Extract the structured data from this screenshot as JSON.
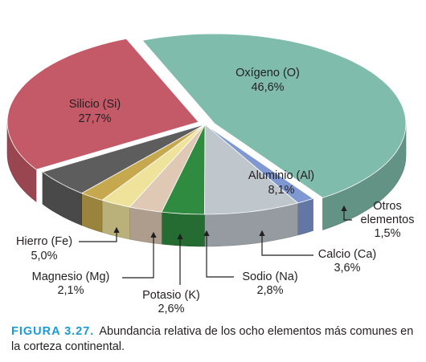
{
  "chart_data": {
    "type": "pie",
    "variant": "3d-exploded",
    "slices": [
      {
        "id": "oxigeno",
        "name": "Oxígeno (O)",
        "value": 46.6,
        "value_label": "46,6%",
        "color": "#7fbcab",
        "exploded": true
      },
      {
        "id": "otros",
        "name": "Otros elementos",
        "value": 1.5,
        "value_label": "1,5%",
        "color": "#7f98d2"
      },
      {
        "id": "aluminio",
        "name": "Aluminio (Al)",
        "value": 8.1,
        "value_label": "8,1%",
        "color": "#bfc7cd"
      },
      {
        "id": "calcio",
        "name": "Calcio (Ca)",
        "value": 3.6,
        "value_label": "3,6%",
        "color": "#2e8b3f"
      },
      {
        "id": "sodio",
        "name": "Sodio (Na)",
        "value": 2.8,
        "value_label": "2,8%",
        "color": "#dfc9b4"
      },
      {
        "id": "potasio",
        "name": "Potasio (K)",
        "value": 2.6,
        "value_label": "2,6%",
        "color": "#efe39c"
      },
      {
        "id": "magnesio",
        "name": "Magnesio (Mg)",
        "value": 2.1,
        "value_label": "2,1%",
        "color": "#c6a84e"
      },
      {
        "id": "hierro",
        "name": "Hierro (Fe)",
        "value": 5.0,
        "value_label": "5,0%",
        "color": "#5d5d5d"
      },
      {
        "id": "silicio",
        "name": "Silicio (Si)",
        "value": 27.7,
        "value_label": "27,7%",
        "color": "#c45a68",
        "exploded": true
      }
    ]
  },
  "labels": {
    "oxigeno": {
      "name": "Oxígeno (O)",
      "value": "46,6%"
    },
    "silicio": {
      "name": "Silicio (Si)",
      "value": "27,7%"
    },
    "aluminio": {
      "name": "Aluminio (Al)",
      "value": "8,1%"
    },
    "otros": {
      "line1": "Otros",
      "line2": "elementos",
      "value": "1,5%"
    },
    "calcio": {
      "name": "Calcio (Ca)",
      "value": "3,6%"
    },
    "sodio": {
      "name": "Sodio (Na)",
      "value": "2,8%"
    },
    "potasio": {
      "name": "Potasio (K)",
      "value": "2,6%"
    },
    "magnesio": {
      "name": "Magnesio (Mg)",
      "value": "2,1%"
    },
    "hierro": {
      "name": "Hierro (Fe)",
      "value": "5,0%"
    }
  },
  "caption": {
    "label": "FIGURA 3.27.",
    "text": "Abundancia relativa de los ocho elementos más comunes en la corteza continental.",
    "label_color": "#1a9bd3"
  }
}
